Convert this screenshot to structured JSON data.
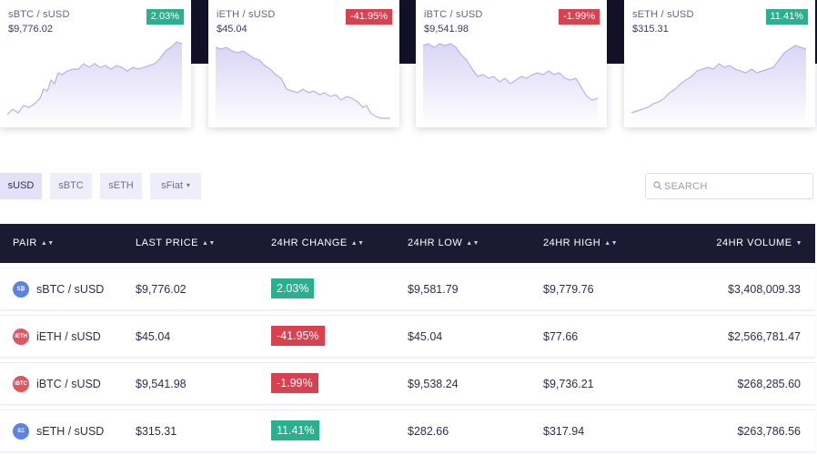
{
  "colors": {
    "up": "#2ab08e",
    "down": "#d9414f",
    "header_bg": "#1a1a33",
    "accent_line": "#b8b3ea"
  },
  "cards": [
    {
      "pair": "sBTC / sUSD",
      "price": "$9,776.02",
      "change": "2.03%",
      "dir": "up"
    },
    {
      "pair": "iETH / sUSD",
      "price": "$45.04",
      "change": "-41.95%",
      "dir": "down"
    },
    {
      "pair": "iBTC / sUSD",
      "price": "$9,541.98",
      "change": "-1.99%",
      "dir": "down"
    },
    {
      "pair": "sETH / sUSD",
      "price": "$315.31",
      "change": "11.41%",
      "dir": "up"
    }
  ],
  "tabs": [
    {
      "label": "sUSD",
      "active": true
    },
    {
      "label": "sBTC",
      "active": false
    },
    {
      "label": "sETH",
      "active": false
    },
    {
      "label": "sFiat",
      "active": false,
      "dropdown": true
    }
  ],
  "search": {
    "placeholder": "SEARCH",
    "value": ""
  },
  "table": {
    "headers": [
      "PAIR",
      "LAST PRICE",
      "24HR CHANGE",
      "24HR LOW",
      "24HR HIGH",
      "24HR VOLUME"
    ],
    "rows": [
      {
        "icon": "sBTC",
        "pair": "sBTC / sUSD",
        "last": "$9,776.02",
        "change": "2.03%",
        "dir": "up",
        "low": "$9,581.79",
        "high": "$9,779.76",
        "volume": "$3,408,009.33"
      },
      {
        "icon": "iETH",
        "pair": "iETH / sUSD",
        "last": "$45.04",
        "change": "-41.95%",
        "dir": "down",
        "low": "$45.04",
        "high": "$77.66",
        "volume": "$2,566,781.47"
      },
      {
        "icon": "iBTC",
        "pair": "iBTC / sUSD",
        "last": "$9,541.98",
        "change": "-1.99%",
        "dir": "down",
        "low": "$9,538.24",
        "high": "$9,736.21",
        "volume": "$268,285.60"
      },
      {
        "icon": "sETH",
        "pair": "sETH / sUSD",
        "last": "$315.31",
        "change": "11.41%",
        "dir": "up",
        "low": "$282.66",
        "high": "$317.94",
        "volume": "$263,786.56"
      }
    ]
  }
}
